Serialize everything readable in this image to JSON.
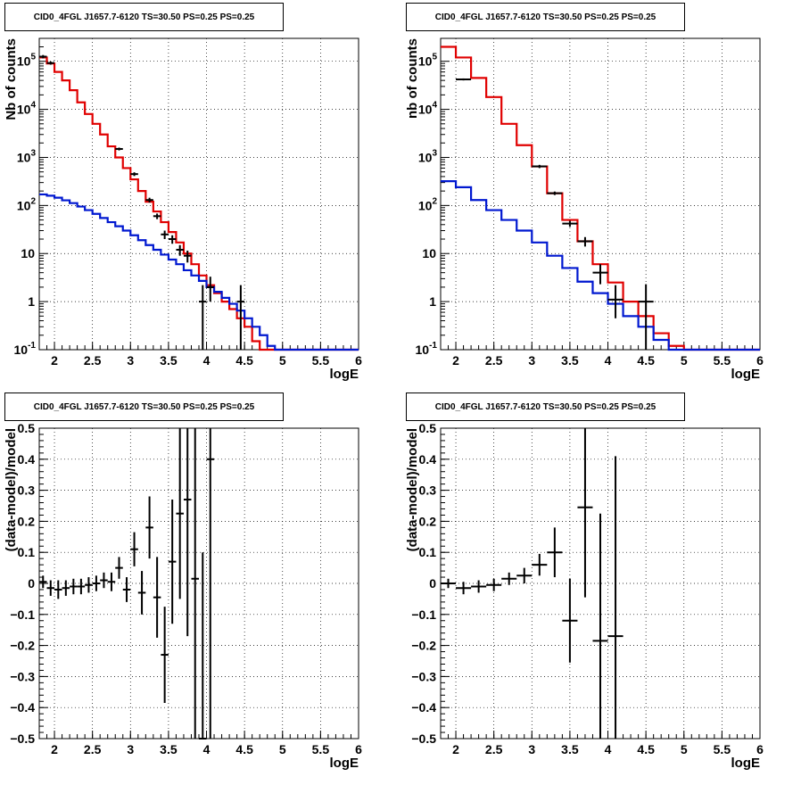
{
  "chart_data": [
    {
      "type": "line",
      "title": "CID0_4FGL J1657.7-6120 TS=30.50 PS=0.25 PS=0.25",
      "xlabel": "logE",
      "ylabel": "Nb of counts",
      "xlim": [
        1.8,
        6.0
      ],
      "ylim": [
        0.1,
        300000
      ],
      "yscale": "log",
      "grid": true,
      "x_ticks": [
        "2",
        "2.5",
        "3",
        "3.5",
        "4",
        "4.5",
        "5",
        "5.5",
        "6"
      ],
      "y_ticks": [
        "10^-1",
        "1",
        "10",
        "10^2",
        "10^3",
        "10^4",
        "10^5"
      ],
      "bin_edges": [
        1.8,
        1.9,
        2.0,
        2.1,
        2.2,
        2.3,
        2.4,
        2.5,
        2.6,
        2.7,
        2.8,
        2.9,
        3.0,
        3.1,
        3.2,
        3.3,
        3.4,
        3.5,
        3.6,
        3.7,
        3.8,
        3.9,
        4.0,
        4.1,
        4.2,
        4.3,
        4.4,
        4.5,
        4.6,
        4.7,
        4.8,
        4.9,
        5.0,
        5.1,
        5.2,
        5.3,
        5.4,
        5.5,
        5.6,
        5.7,
        5.8,
        5.9,
        6.0
      ],
      "series": [
        {
          "color": "#e00000",
          "values": [
            120000,
            90000,
            60000,
            40000,
            25000,
            14000,
            8000,
            5000,
            3000,
            1700,
            1000,
            600,
            350,
            200,
            120,
            75,
            45,
            28,
            17,
            10,
            6,
            3.5,
            2.2,
            1.5,
            1,
            0.7,
            0.45,
            0.3,
            0.15,
            0.1,
            0.1,
            0.1,
            0.1,
            0.1,
            0.1,
            0.1,
            0.1,
            0.1,
            0.1,
            0.1,
            0.1,
            0.1
          ]
        },
        {
          "color": "#0018d0",
          "values": [
            170,
            160,
            145,
            128,
            112,
            95,
            80,
            67,
            55,
            45,
            37,
            30,
            24,
            19,
            15,
            12,
            9.5,
            7.5,
            6,
            4.5,
            3.5,
            2.7,
            2,
            1.6,
            1.2,
            0.9,
            0.65,
            0.45,
            0.3,
            0.2,
            0.12,
            0.1,
            0.1,
            0.1,
            0.1,
            0.1,
            0.1,
            0.1,
            0.1,
            0.1,
            0.1,
            0.1
          ]
        }
      ],
      "data_points": [
        {
          "x": 1.85,
          "y": 125000,
          "lo": 115000,
          "hi": 135000
        },
        {
          "x": 1.95,
          "y": 92000,
          "lo": 85000,
          "hi": 99000
        },
        {
          "x": 2.85,
          "y": 1500,
          "lo": 1400,
          "hi": 1600
        },
        {
          "x": 3.05,
          "y": 450,
          "lo": 410,
          "hi": 490
        },
        {
          "x": 3.25,
          "y": 130,
          "lo": 115,
          "hi": 145
        },
        {
          "x": 3.35,
          "y": 60,
          "lo": 52,
          "hi": 68
        },
        {
          "x": 3.45,
          "y": 25,
          "lo": 20,
          "hi": 30
        },
        {
          "x": 3.55,
          "y": 20,
          "lo": 16,
          "hi": 24
        },
        {
          "x": 3.65,
          "y": 12,
          "lo": 9,
          "hi": 15
        },
        {
          "x": 3.75,
          "y": 9,
          "lo": 6.5,
          "hi": 11.5
        },
        {
          "x": 3.95,
          "y": 1,
          "lo": 0.1,
          "hi": 2.2
        },
        {
          "x": 4.05,
          "y": 2,
          "lo": 1,
          "hi": 3.3
        },
        {
          "x": 4.45,
          "y": 1,
          "lo": 0.1,
          "hi": 2.2
        }
      ]
    },
    {
      "type": "line",
      "title": "CID0_4FGL J1657.7-6120 TS=30.50 PS=0.25 PS=0.25",
      "xlabel": "logE",
      "ylabel": "nb of counts",
      "xlim": [
        1.8,
        6.0
      ],
      "ylim": [
        0.1,
        300000
      ],
      "yscale": "log",
      "grid": true,
      "x_ticks": [
        "2",
        "2.5",
        "3",
        "3.5",
        "4",
        "4.5",
        "5",
        "5.5",
        "6"
      ],
      "y_ticks": [
        "10^-1",
        "1",
        "10",
        "10^2",
        "10^3",
        "10^4",
        "10^5"
      ],
      "bin_edges": [
        1.8,
        2.0,
        2.2,
        2.4,
        2.6,
        2.8,
        3.0,
        3.2,
        3.4,
        3.6,
        3.8,
        4.0,
        4.2,
        4.4,
        4.6,
        4.8,
        5.0,
        5.2,
        5.4,
        5.6,
        5.8,
        6.0
      ],
      "series": [
        {
          "color": "#e00000",
          "values": [
            200000,
            120000,
            45000,
            18000,
            5000,
            1800,
            650,
            180,
            50,
            18,
            6,
            2.5,
            1,
            0.5,
            0.22,
            0.12,
            0.1,
            0.1,
            0.1,
            0.1,
            0.1
          ]
        },
        {
          "color": "#0018d0",
          "values": [
            320,
            240,
            130,
            80,
            50,
            30,
            17,
            9,
            5,
            2.6,
            1.5,
            0.9,
            0.5,
            0.3,
            0.16,
            0.1,
            0.1,
            0.1,
            0.1,
            0.1,
            0.1
          ]
        }
      ],
      "data_points": [
        {
          "x": 2.1,
          "y": 42000,
          "lo": 40000,
          "hi": 44000
        },
        {
          "x": 3.1,
          "y": 650,
          "lo": 600,
          "hi": 700
        },
        {
          "x": 3.3,
          "y": 180,
          "lo": 165,
          "hi": 195
        },
        {
          "x": 3.5,
          "y": 42,
          "lo": 36,
          "hi": 48
        },
        {
          "x": 3.7,
          "y": 18,
          "lo": 14,
          "hi": 22
        },
        {
          "x": 3.9,
          "y": 4,
          "lo": 2.3,
          "hi": 6
        },
        {
          "x": 4.1,
          "y": 1.1,
          "lo": 0.45,
          "hi": 2.2
        },
        {
          "x": 4.5,
          "y": 1,
          "lo": 0.1,
          "hi": 2.3
        }
      ]
    },
    {
      "type": "scatter",
      "title": "CID0_4FGL J1657.7-6120 TS=30.50 PS=0.25 PS=0.25",
      "xlabel": "logE",
      "ylabel": "(data-model)/model",
      "xlim": [
        1.8,
        6.0
      ],
      "ylim": [
        -0.5,
        0.5
      ],
      "grid": true,
      "x_ticks": [
        "2",
        "2.5",
        "3",
        "3.5",
        "4",
        "4.5",
        "5",
        "5.5",
        "6"
      ],
      "y_ticks": [
        "−0.5",
        "−0.4",
        "−0.3",
        "−0.2",
        "−0.1",
        "0",
        "0.1",
        "0.2",
        "0.3",
        "0.4",
        "0.5"
      ],
      "points": [
        {
          "x": 1.85,
          "y": 0.005,
          "e": 0.02,
          "hw": 0.05
        },
        {
          "x": 1.95,
          "y": -0.015,
          "e": 0.025,
          "hw": 0.05
        },
        {
          "x": 2.05,
          "y": -0.02,
          "e": 0.03,
          "hw": 0.05
        },
        {
          "x": 2.15,
          "y": -0.015,
          "e": 0.025,
          "hw": 0.05
        },
        {
          "x": 2.25,
          "y": -0.01,
          "e": 0.025,
          "hw": 0.05
        },
        {
          "x": 2.35,
          "y": -0.01,
          "e": 0.025,
          "hw": 0.05
        },
        {
          "x": 2.45,
          "y": -0.005,
          "e": 0.025,
          "hw": 0.05
        },
        {
          "x": 2.55,
          "y": 0.0,
          "e": 0.025,
          "hw": 0.05
        },
        {
          "x": 2.65,
          "y": 0.01,
          "e": 0.025,
          "hw": 0.05
        },
        {
          "x": 2.75,
          "y": 0.005,
          "e": 0.03,
          "hw": 0.05
        },
        {
          "x": 2.85,
          "y": 0.05,
          "e": 0.035,
          "hw": 0.05
        },
        {
          "x": 2.95,
          "y": -0.02,
          "e": 0.04,
          "hw": 0.05
        },
        {
          "x": 3.05,
          "y": 0.11,
          "e": 0.055,
          "hw": 0.05
        },
        {
          "x": 3.15,
          "y": -0.03,
          "e": 0.07,
          "hw": 0.05
        },
        {
          "x": 3.25,
          "y": 0.18,
          "e": 0.1,
          "hw": 0.05
        },
        {
          "x": 3.35,
          "y": -0.045,
          "e": 0.13,
          "hw": 0.05
        },
        {
          "x": 3.45,
          "y": -0.23,
          "e": 0.155,
          "hw": 0.05
        },
        {
          "x": 3.55,
          "y": 0.07,
          "e": 0.2,
          "hw": 0.05
        },
        {
          "x": 3.65,
          "y": 0.225,
          "e": 0.275,
          "hw": 0.05
        },
        {
          "x": 3.75,
          "y": 0.27,
          "e": 0.44,
          "hw": 0.05
        },
        {
          "x": 3.85,
          "y": 0.015,
          "e": 0.6,
          "hw": 0.05
        },
        {
          "x": 3.95,
          "y": -0.5,
          "e": 0.6,
          "hw": 0.05
        },
        {
          "x": 4.05,
          "y": 0.4,
          "e": 1.0,
          "hw": 0.05
        }
      ]
    },
    {
      "type": "scatter",
      "title": "CID0_4FGL J1657.7-6120 TS=30.50 PS=0.25 PS=0.25",
      "xlabel": "logE",
      "ylabel": "(data-model)/model",
      "xlim": [
        1.8,
        6.0
      ],
      "ylim": [
        -0.5,
        0.5
      ],
      "grid": true,
      "x_ticks": [
        "2",
        "2.5",
        "3",
        "3.5",
        "4",
        "4.5",
        "5",
        "5.5",
        "6"
      ],
      "y_ticks": [
        "−0.5",
        "−0.4",
        "−0.3",
        "−0.2",
        "−0.1",
        "0",
        "0.1",
        "0.2",
        "0.3",
        "0.4",
        "0.5"
      ],
      "points": [
        {
          "x": 1.9,
          "y": 0.0,
          "e": 0.015,
          "hw": 0.1
        },
        {
          "x": 2.1,
          "y": -0.015,
          "e": 0.02,
          "hw": 0.1
        },
        {
          "x": 2.3,
          "y": -0.01,
          "e": 0.02,
          "hw": 0.1
        },
        {
          "x": 2.5,
          "y": -0.005,
          "e": 0.02,
          "hw": 0.1
        },
        {
          "x": 2.7,
          "y": 0.015,
          "e": 0.02,
          "hw": 0.1
        },
        {
          "x": 2.9,
          "y": 0.025,
          "e": 0.025,
          "hw": 0.1
        },
        {
          "x": 3.1,
          "y": 0.06,
          "e": 0.035,
          "hw": 0.1
        },
        {
          "x": 3.3,
          "y": 0.1,
          "e": 0.08,
          "hw": 0.1
        },
        {
          "x": 3.5,
          "y": -0.12,
          "e": 0.135,
          "hw": 0.1
        },
        {
          "x": 3.7,
          "y": 0.245,
          "e": 0.29,
          "hw": 0.1
        },
        {
          "x": 3.9,
          "y": -0.185,
          "e": 0.41,
          "hw": 0.1
        },
        {
          "x": 4.1,
          "y": -0.17,
          "e": 0.58,
          "hw": 0.1
        }
      ]
    }
  ]
}
